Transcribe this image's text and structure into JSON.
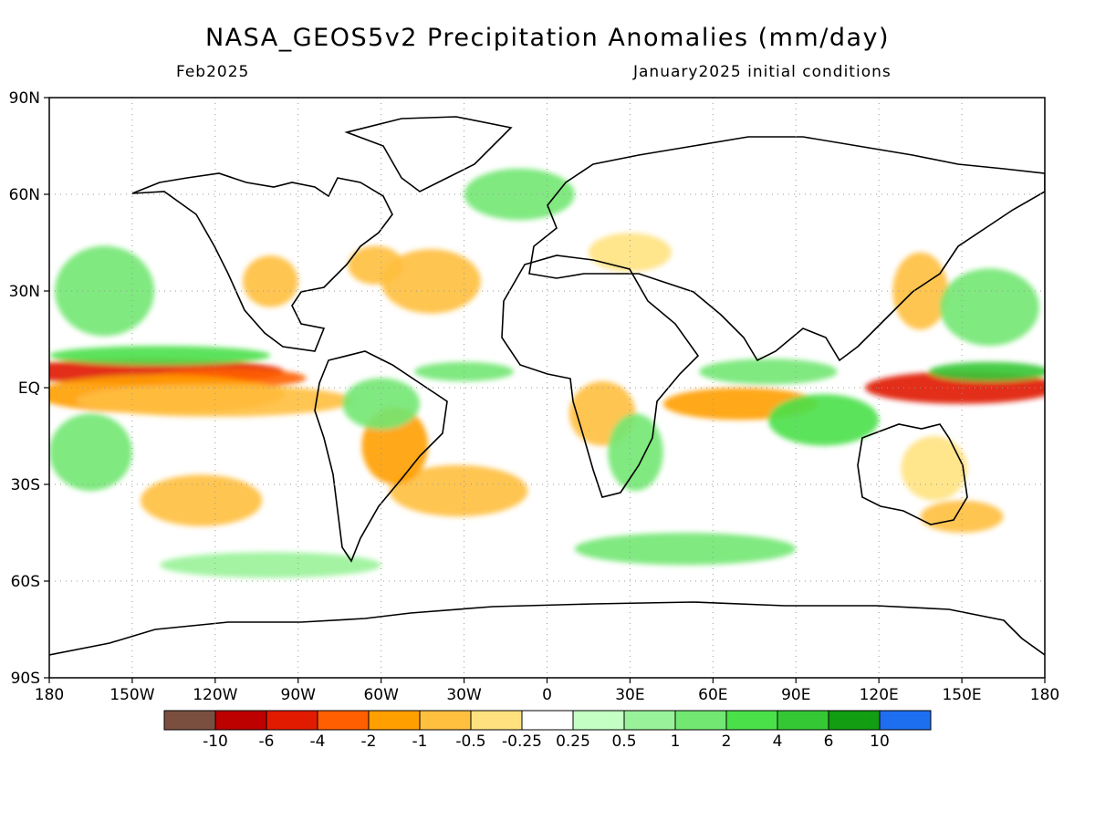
{
  "header": {
    "title": "NASA_GEOS5v2 Precipitation Anomalies (mm/day)",
    "valid_month": "Feb2025",
    "initial_conditions": "January2025 initial conditions"
  },
  "chart_data": {
    "type": "heatmap",
    "title": "NASA_GEOS5v2 Precipitation Anomalies (mm/day)",
    "subtitle_left": "Feb2025",
    "subtitle_right": "January2025 initial conditions",
    "projection": "equirectangular",
    "xlim": [
      -180,
      180
    ],
    "ylim": [
      -90,
      90
    ],
    "grid": true,
    "x_ticks": [
      {
        "value": -180,
        "label": "180"
      },
      {
        "value": -150,
        "label": "150W"
      },
      {
        "value": -120,
        "label": "120W"
      },
      {
        "value": -90,
        "label": "90W"
      },
      {
        "value": -60,
        "label": "60W"
      },
      {
        "value": -30,
        "label": "30W"
      },
      {
        "value": 0,
        "label": "0"
      },
      {
        "value": 30,
        "label": "30E"
      },
      {
        "value": 60,
        "label": "60E"
      },
      {
        "value": 90,
        "label": "90E"
      },
      {
        "value": 120,
        "label": "120E"
      },
      {
        "value": 150,
        "label": "150E"
      },
      {
        "value": 180,
        "label": "180"
      }
    ],
    "y_ticks": [
      {
        "value": 90,
        "label": "90N"
      },
      {
        "value": 60,
        "label": "60N"
      },
      {
        "value": 30,
        "label": "30N"
      },
      {
        "value": 0,
        "label": "EQ"
      },
      {
        "value": -30,
        "label": "30S"
      },
      {
        "value": -60,
        "label": "60S"
      },
      {
        "value": -90,
        "label": "90S"
      }
    ],
    "colorbar": {
      "colors": [
        "#7b4f3f",
        "#bd0000",
        "#e01b00",
        "#ff5f00",
        "#ff9f00",
        "#ffbf3f",
        "#ffe27f",
        "#ffffff",
        "#c4ffc4",
        "#99f299",
        "#72e772",
        "#4ae04a",
        "#35c835",
        "#129d12",
        "#1e6ef0"
      ],
      "labels": [
        "-10",
        "-6",
        "-4",
        "-2",
        "-1",
        "-0.5",
        "-0.25",
        "0.25",
        "0.5",
        "1",
        "2",
        "4",
        "6",
        "10"
      ]
    },
    "anomaly_regions": [
      {
        "lon": -145,
        "lat": 5,
        "rlon": 50,
        "rlat": 4,
        "value": -6
      },
      {
        "lon": -115,
        "lat": 3,
        "rlon": 28,
        "rlat": 3,
        "value": -4
      },
      {
        "lon": -140,
        "lat": -2,
        "rlon": 45,
        "rlat": 6,
        "value": -2
      },
      {
        "lon": -120,
        "lat": -4,
        "rlon": 50,
        "rlat": 5,
        "value": -1
      },
      {
        "lon": -140,
        "lat": 10,
        "rlon": 40,
        "rlat": 3,
        "value": 2
      },
      {
        "lon": -160,
        "lat": 30,
        "rlon": 18,
        "rlat": 14,
        "value": 1
      },
      {
        "lon": -165,
        "lat": -20,
        "rlon": 15,
        "rlat": 12,
        "value": 1
      },
      {
        "lon": -100,
        "lat": 33,
        "rlon": 10,
        "rlat": 8,
        "value": -1
      },
      {
        "lon": -42,
        "lat": 33,
        "rlon": 18,
        "rlat": 10,
        "value": -1
      },
      {
        "lon": -62,
        "lat": 38,
        "rlon": 10,
        "rlat": 6,
        "value": -1
      },
      {
        "lon": -125,
        "lat": -35,
        "rlon": 22,
        "rlat": 8,
        "value": -1
      },
      {
        "lon": -32,
        "lat": -32,
        "rlon": 25,
        "rlat": 8,
        "value": -1
      },
      {
        "lon": -55,
        "lat": -18,
        "rlon": 12,
        "rlat": 12,
        "value": -2
      },
      {
        "lon": -60,
        "lat": -5,
        "rlon": 14,
        "rlat": 8,
        "value": 1
      },
      {
        "lon": -30,
        "lat": 5,
        "rlon": 18,
        "rlat": 3,
        "value": 1
      },
      {
        "lon": 20,
        "lat": -8,
        "rlon": 12,
        "rlat": 10,
        "value": -1
      },
      {
        "lon": 32,
        "lat": -20,
        "rlon": 10,
        "rlat": 12,
        "value": 1
      },
      {
        "lon": 70,
        "lat": -5,
        "rlon": 28,
        "rlat": 5,
        "value": -2
      },
      {
        "lon": 80,
        "lat": 5,
        "rlon": 25,
        "rlat": 4,
        "value": 1
      },
      {
        "lon": 100,
        "lat": -10,
        "rlon": 20,
        "rlat": 8,
        "value": 2
      },
      {
        "lon": 150,
        "lat": 0,
        "rlon": 35,
        "rlat": 5,
        "value": -6
      },
      {
        "lon": 160,
        "lat": 5,
        "rlon": 22,
        "rlat": 3,
        "value": 4
      },
      {
        "lon": 135,
        "lat": 30,
        "rlon": 10,
        "rlat": 12,
        "value": -1
      },
      {
        "lon": 160,
        "lat": 25,
        "rlon": 18,
        "rlat": 12,
        "value": 1
      },
      {
        "lon": 140,
        "lat": -25,
        "rlon": 12,
        "rlat": 10,
        "value": -0.5
      },
      {
        "lon": 150,
        "lat": -40,
        "rlon": 15,
        "rlat": 5,
        "value": -1
      },
      {
        "lon": -10,
        "lat": 60,
        "rlon": 20,
        "rlat": 8,
        "value": 1
      },
      {
        "lon": 30,
        "lat": 42,
        "rlon": 15,
        "rlat": 6,
        "value": -0.5
      },
      {
        "lon": 50,
        "lat": -50,
        "rlon": 40,
        "rlat": 5,
        "value": 1
      },
      {
        "lon": -100,
        "lat": -55,
        "rlon": 40,
        "rlat": 4,
        "value": 0.5
      }
    ]
  }
}
